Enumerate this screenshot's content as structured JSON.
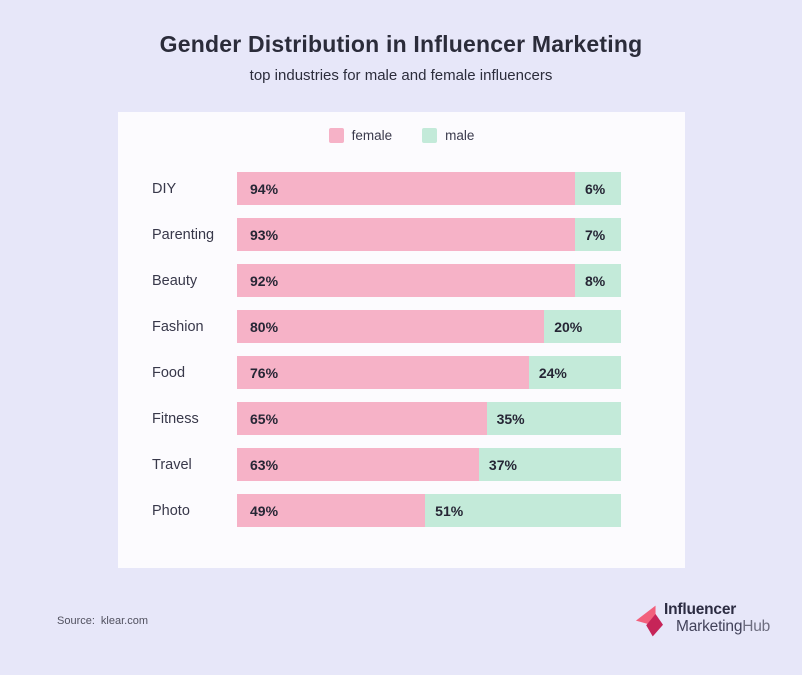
{
  "header": {
    "title": "Gender Distribution in Influencer Marketing",
    "subtitle": "top industries for male and female influencers"
  },
  "chart_data": {
    "type": "bar",
    "orientation": "horizontal",
    "stacked": true,
    "title": "Gender Distribution in Influencer Marketing",
    "subtitle": "top industries for male and female influencers",
    "categories": [
      "DIY",
      "Parenting",
      "Beauty",
      "Fashion",
      "Food",
      "Fitness",
      "Travel",
      "Photo"
    ],
    "series": [
      {
        "name": "female",
        "color": "#f6b2c7",
        "values": [
          94,
          93,
          92,
          80,
          76,
          65,
          63,
          49
        ]
      },
      {
        "name": "male",
        "color": "#c3ead9",
        "values": [
          6,
          7,
          8,
          20,
          24,
          35,
          37,
          51
        ]
      }
    ],
    "value_suffix": "%",
    "xlim": [
      0,
      100
    ],
    "grid": false,
    "legend_position": "top"
  },
  "footer": {
    "source_label": "Source:",
    "source_value": "klear.com"
  },
  "logo": {
    "line1": "Influencer",
    "line2_part1": "Marketing",
    "line2_part2": "Hub",
    "icon_color_light": "#f2607c",
    "icon_color_dark": "#c62458"
  },
  "colors": {
    "page_background": "#e7e7f9",
    "card_background": "#fcfbfe",
    "female": "#f6b2c7",
    "male": "#c3ead9",
    "text_dark": "#2b2c3a"
  }
}
